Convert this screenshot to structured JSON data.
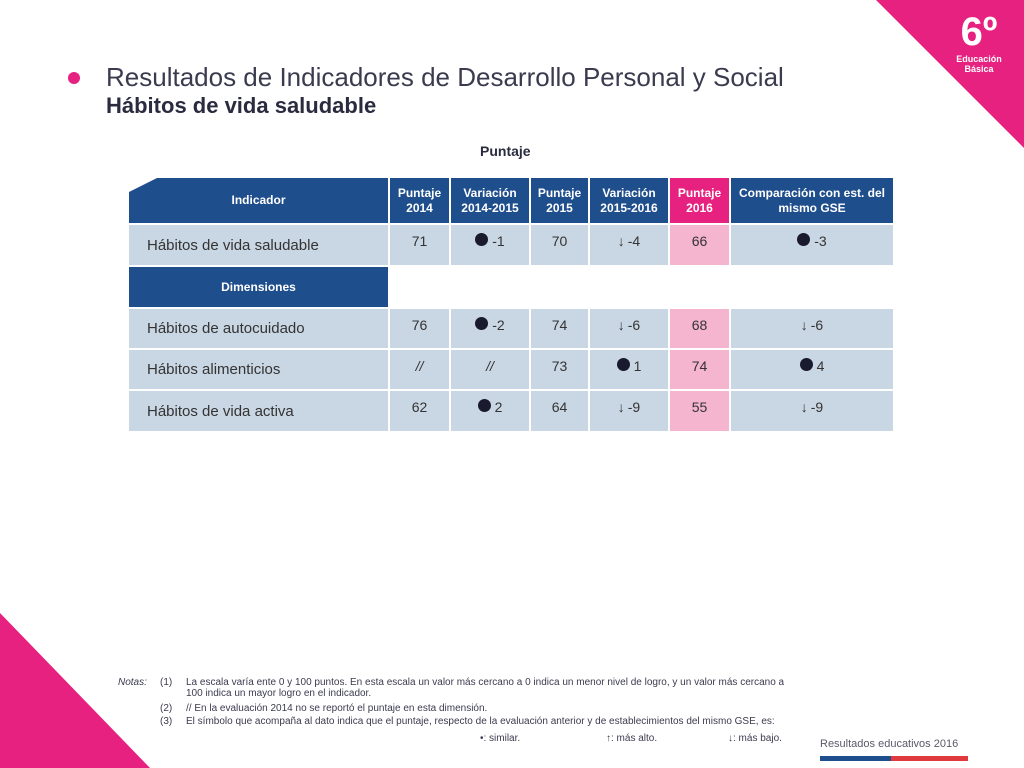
{
  "badge": {
    "grade": "6º",
    "line1": "Educación",
    "line2": "Básica"
  },
  "title": "Resultados de Indicadores de Desarrollo Personal y Social",
  "subtitle": "Hábitos de vida saludable",
  "table_caption": "Puntaje",
  "headers": {
    "indicador": "Indicador",
    "p2014": "Puntaje 2014",
    "v1415": "Variación 2014-2015",
    "p2015": "Puntaje 2015",
    "v1516": "Variación 2015-2016",
    "p2016": "Puntaje 2016",
    "comp": "Comparación con est. del mismo GSE"
  },
  "main_row": {
    "label": "Hábitos de vida saludable",
    "p2014": "71",
    "v1415_sym": "dot",
    "v1415": "-1",
    "p2015": "70",
    "v1516_sym": "↓",
    "v1516": "-4",
    "p2016": "66",
    "comp_sym": "dot",
    "comp": "-3"
  },
  "dimensions_header": "Dimensiones",
  "rows": [
    {
      "label": "Hábitos de autocuidado",
      "p2014": "76",
      "v1415": "-2",
      "p2015": "74",
      "v1516": "-6",
      "p2016": "68",
      "comp": "-6"
    },
    {
      "label": "Hábitos alimenticios",
      "p2014": "//",
      "v1415": "//",
      "p2015": "73",
      "v1516": "1",
      "p2016": "74",
      "comp": "4"
    },
    {
      "label": "Hábitos de vida activa",
      "p2014": "62",
      "v1415": "2",
      "p2015": "64",
      "v1516": "-9",
      "p2016": "55",
      "comp": "-9"
    }
  ],
  "notes": {
    "label": "Notas:",
    "n1_num": "(1)",
    "n1": "La escala varía ente 0 y 100 puntos. En esta escala un valor más cercano a 0 indica un menor nivel de logro, y un valor más cercano a 100 indica un mayor logro en el indicador.",
    "n2_num": "(2)",
    "n2": "// En la evaluación 2014 no se reportó el puntaje en esta dimensión.",
    "n3_num": "(3)",
    "n3": "El símbolo que acompaña al dato indica que el puntaje, respecto de la evaluación anterior y de establecimientos del mismo GSE, es:",
    "similar": "•: similar.",
    "alto": "↑: más alto.",
    "bajo": "↓: más bajo."
  },
  "footer": "Resultados educativos 2016",
  "colors": {
    "accent": "#e6217f",
    "header_blue": "#1f4e8c",
    "row_blue": "#c9d6e3",
    "row_pink": "#f5b5cf"
  }
}
